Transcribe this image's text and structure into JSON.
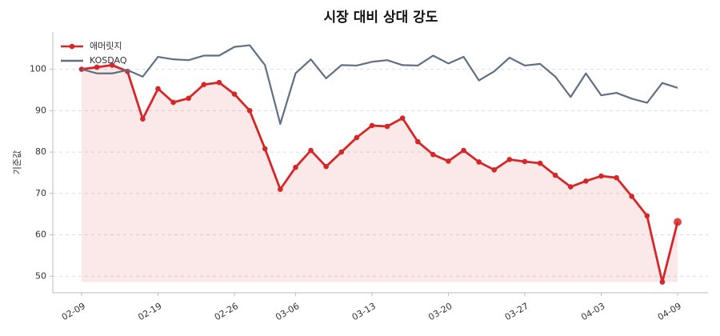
{
  "chart_data": {
    "type": "line",
    "title": "시장 대비 상대 강도",
    "y_label": "기준값",
    "categories": [
      "02-09",
      null,
      null,
      null,
      null,
      "02-19",
      null,
      null,
      null,
      null,
      "02-26",
      null,
      null,
      null,
      "03-06",
      null,
      null,
      null,
      null,
      "03-13",
      null,
      null,
      null,
      null,
      "03-20",
      null,
      null,
      null,
      null,
      "03-27",
      null,
      null,
      null,
      null,
      "04-03",
      null,
      null,
      null,
      null,
      "04-09"
    ],
    "series": [
      {
        "name": "애머릿지",
        "color": "#d62728",
        "values": [
          100,
          100.5,
          101,
          99.5,
          88,
          95.3,
          92,
          93,
          96.3,
          96.8,
          94,
          90,
          80.8,
          71,
          76.3,
          80.4,
          76.5,
          80,
          83.5,
          86.4,
          86.2,
          88.2,
          82.5,
          79.4,
          77.8,
          80.4,
          77.6,
          75.7,
          78.2,
          77.7,
          77.3,
          74.4,
          71.6,
          73,
          74.2,
          73.8,
          69.3,
          64.6,
          48.6,
          63.1
        ]
      },
      {
        "name": "KOSDAQ",
        "color": "#5f6f86",
        "values": [
          100,
          99,
          99,
          99.8,
          98.2,
          103,
          102.4,
          102.2,
          103.3,
          103.3,
          105.4,
          105.8,
          101,
          86.8,
          99,
          102.4,
          97.8,
          101,
          100.9,
          101.8,
          102.2,
          101,
          100.9,
          103.3,
          101.4,
          103,
          97.3,
          99.5,
          102.8,
          100.9,
          101.3,
          98.2,
          93.3,
          99,
          93.7,
          94.3,
          92.9,
          91.9,
          96.7,
          95.5
        ]
      }
    ],
    "ylim": [
      46,
      109
    ],
    "yticks": [
      50,
      60,
      70,
      80,
      90,
      100
    ],
    "grid": true,
    "legend": "upper left"
  }
}
